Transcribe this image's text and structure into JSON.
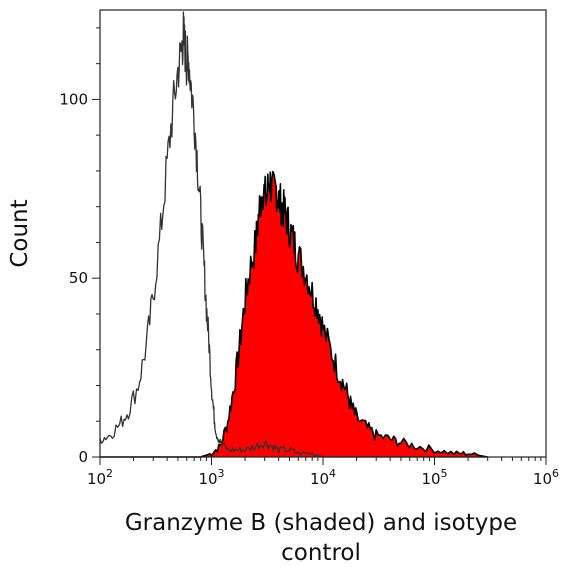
{
  "chart_data": {
    "type": "area",
    "title": "",
    "xlabel": "Granzyme B (shaded) and isotype control",
    "xlabel_lines": [
      "Granzyme B (shaded) and isotype",
      "control"
    ],
    "ylabel": "Count",
    "xscale": "log",
    "xlim": [
      100,
      1000000
    ],
    "ylim": [
      0,
      125
    ],
    "x_ticks": [
      {
        "value": 100,
        "base": "10",
        "exp": "2"
      },
      {
        "value": 1000,
        "base": "10",
        "exp": "3"
      },
      {
        "value": 10000,
        "base": "10",
        "exp": "4"
      },
      {
        "value": 100000,
        "base": "10",
        "exp": "5"
      },
      {
        "value": 1000000,
        "base": "10",
        "exp": "6"
      }
    ],
    "y_ticks": [
      0,
      50,
      100
    ],
    "grid": false,
    "legend": "none",
    "series": [
      {
        "name": "isotype control",
        "style": "line",
        "color": "#333333",
        "x": [
          100,
          120,
          150,
          180,
          220,
          260,
          300,
          350,
          400,
          450,
          500,
          540,
          560,
          580,
          600,
          620,
          650,
          700,
          750,
          800,
          850,
          900,
          950,
          1000,
          1050,
          1100,
          1200,
          1400,
          1700,
          2000,
          2500,
          3000,
          3500,
          4000,
          5000,
          6000,
          8000,
          10000,
          20000,
          50000,
          100000,
          300000
        ],
        "values": [
          5,
          6,
          9,
          13,
          20,
          31,
          45,
          63,
          82,
          97,
          108,
          114,
          118,
          114,
          110,
          112,
          105,
          95,
          82,
          68,
          55,
          42,
          32,
          20,
          12,
          7,
          4,
          2,
          2,
          2,
          3,
          4,
          3,
          2,
          2,
          1,
          1,
          0,
          0,
          0,
          0,
          0
        ]
      },
      {
        "name": "Granzyme B",
        "style": "filled",
        "color": "#ff0000",
        "edge_color": "#000000",
        "x": [
          100,
          500,
          800,
          1000,
          1200,
          1400,
          1600,
          1800,
          2000,
          2200,
          2500,
          2700,
          2900,
          3100,
          3300,
          3500,
          3800,
          4000,
          4300,
          4600,
          5000,
          5500,
          6000,
          7000,
          8000,
          9000,
          10000,
          12000,
          14000,
          16000,
          18000,
          20000,
          25000,
          30000,
          40000,
          50000,
          70000,
          100000,
          150000,
          200000,
          300000
        ],
        "values": [
          0,
          0,
          0,
          1,
          3,
          10,
          20,
          32,
          44,
          52,
          60,
          70,
          75,
          72,
          78,
          74,
          75,
          72,
          70,
          68,
          64,
          60,
          56,
          52,
          46,
          42,
          36,
          29,
          23,
          19,
          14,
          11,
          8,
          6,
          5,
          4,
          3,
          2,
          1,
          1,
          0
        ]
      }
    ]
  }
}
